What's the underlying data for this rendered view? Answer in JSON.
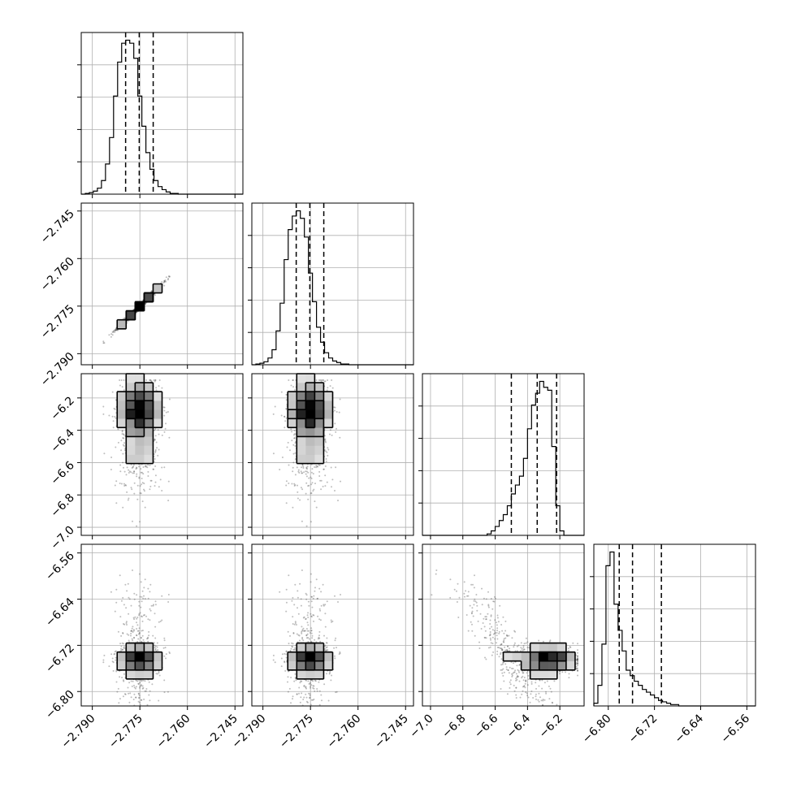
{
  "chart_data": {
    "type": "corner",
    "parameters": [
      {
        "index": 0,
        "range": [
          -2.7935,
          -2.7425
        ],
        "ticks": [
          -2.79,
          -2.775,
          -2.76,
          -2.745
        ],
        "tick_labels": [
          "−2.790",
          "−2.775",
          "−2.760",
          "−2.745"
        ],
        "quantiles": [
          -2.7795,
          -2.7752,
          -2.7708
        ]
      },
      {
        "index": 1,
        "range": [
          -2.7935,
          -2.7425
        ],
        "ticks": [
          -2.79,
          -2.775,
          -2.76,
          -2.745
        ],
        "tick_labels": [
          "−2.790",
          "−2.775",
          "−2.760",
          "−2.745"
        ],
        "quantiles": [
          -2.7795,
          -2.7752,
          -2.7708
        ]
      },
      {
        "index": 2,
        "range": [
          -7.05,
          -6.05
        ],
        "ticks": [
          -7.0,
          -6.8,
          -6.6,
          -6.4,
          -6.2
        ],
        "tick_labels": [
          "−7.0",
          "−6.8",
          "−6.6",
          "−6.4",
          "−6.2"
        ],
        "quantiles": [
          -6.5,
          -6.34,
          -6.22
        ]
      },
      {
        "index": 3,
        "range": [
          -6.825,
          -6.545
        ],
        "ticks": [
          -6.8,
          -6.72,
          -6.64,
          -6.56
        ],
        "tick_labels": [
          "−6.80",
          "−6.72",
          "−6.64",
          "−6.56"
        ],
        "quantiles": [
          -6.781,
          -6.758,
          -6.708
        ]
      }
    ],
    "histograms": [
      {
        "param": 0,
        "counts": [
          0,
          1,
          2,
          4,
          8,
          18,
          40,
          75,
          130,
          175,
          200,
          204,
          200,
          180,
          130,
          90,
          55,
          33,
          18,
          10,
          6,
          3,
          1,
          1,
          0,
          0,
          0,
          0,
          0,
          0,
          0,
          0,
          0,
          0,
          0,
          0,
          0,
          0,
          0,
          0
        ]
      },
      {
        "param": 1,
        "counts": [
          0,
          1,
          2,
          4,
          9,
          20,
          45,
          82,
          140,
          180,
          198,
          205,
          195,
          170,
          122,
          84,
          50,
          30,
          16,
          9,
          5,
          3,
          1,
          1,
          0,
          0,
          0,
          0,
          0,
          0,
          0,
          0,
          0,
          0,
          0,
          0,
          0,
          0,
          0,
          0
        ]
      },
      {
        "param": 2,
        "counts": [
          0,
          0,
          0,
          0,
          0,
          0,
          0,
          0,
          0,
          0,
          0,
          0,
          0,
          0,
          0,
          0,
          1,
          3,
          6,
          10,
          14,
          20,
          28,
          34,
          40,
          52,
          72,
          88,
          96,
          104,
          100,
          98,
          60,
          20,
          3,
          0,
          0,
          0,
          0,
          0
        ]
      },
      {
        "param": 3,
        "counts": [
          2,
          15,
          45,
          102,
          112,
          74,
          55,
          40,
          26,
          22,
          18,
          15,
          12,
          10,
          8,
          6,
          4,
          3,
          2,
          1,
          1,
          0,
          0,
          0,
          0,
          0,
          0,
          0,
          0,
          0,
          0,
          0,
          0,
          0,
          0,
          0,
          0,
          0,
          0,
          0
        ]
      }
    ],
    "scatter_panels": [
      {
        "x_param": 0,
        "y_param": 1,
        "description": "highly correlated narrow ellipse"
      },
      {
        "x_param": 0,
        "y_param": 2
      },
      {
        "x_param": 1,
        "y_param": 2
      },
      {
        "x_param": 0,
        "y_param": 3
      },
      {
        "x_param": 1,
        "y_param": 3
      },
      {
        "x_param": 2,
        "y_param": 3,
        "description": "anti-correlated diagonal band"
      }
    ],
    "grid": true,
    "quantile_line_style": "dashed"
  }
}
